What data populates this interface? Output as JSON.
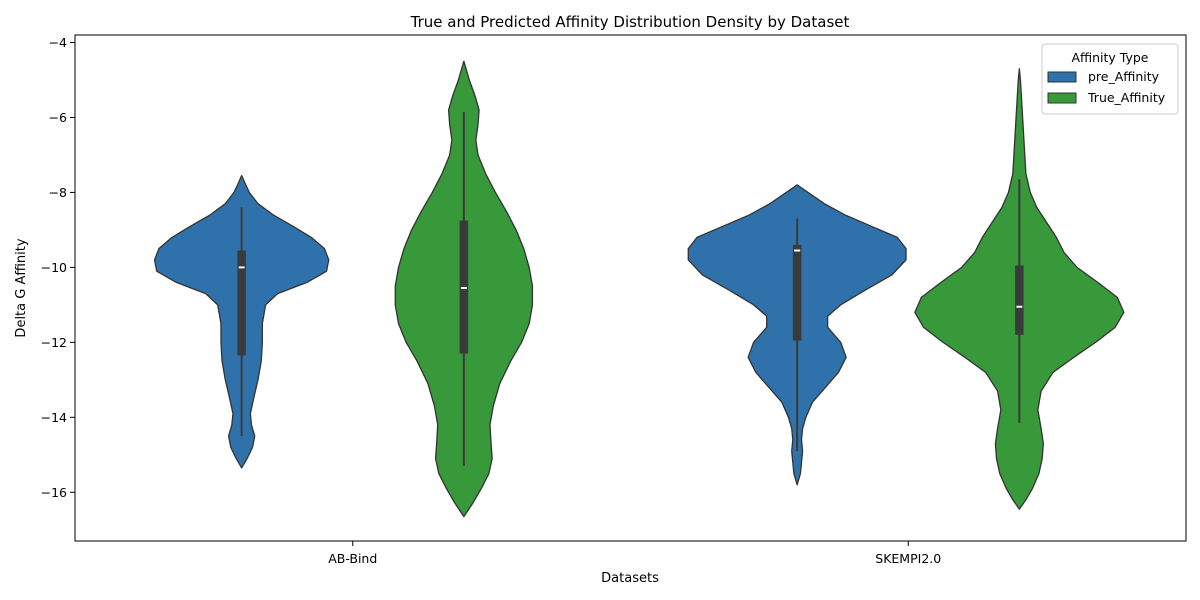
{
  "chart_data": {
    "type": "violin",
    "title": "True and Predicted Affinity Distribution Density by Dataset",
    "xlabel": "Datasets",
    "ylabel": "Delta G Affinity",
    "categories": [
      "AB-Bind",
      "SKEMPI2.0"
    ],
    "ylim": [
      -17.3,
      -3.8
    ],
    "yticks": [
      -4,
      -6,
      -8,
      -10,
      -12,
      -14,
      -16
    ],
    "ytick_labels": [
      "−4",
      "−6",
      "−8",
      "−10",
      "−12",
      "−14",
      "−16"
    ],
    "grid": false,
    "legend": {
      "title": "Affinity Type",
      "position": "top-right"
    },
    "series": [
      {
        "name": "pre_Affinity",
        "color": "#2f72ab",
        "violins": [
          {
            "category": "AB-Bind",
            "range": [
              -15.35,
              -7.55
            ],
            "profile": [
              [
                -15.35,
                0
              ],
              [
                -15.1,
                0.05
              ],
              [
                -14.8,
                0.1
              ],
              [
                -14.5,
                0.12
              ],
              [
                -14.2,
                0.09
              ],
              [
                -13.9,
                0.08
              ],
              [
                -13.5,
                0.11
              ],
              [
                -13.0,
                0.15
              ],
              [
                -12.5,
                0.18
              ],
              [
                -12.0,
                0.19
              ],
              [
                -11.5,
                0.19
              ],
              [
                -11.0,
                0.22
              ],
              [
                -10.7,
                0.33
              ],
              [
                -10.4,
                0.6
              ],
              [
                -10.1,
                0.78
              ],
              [
                -9.8,
                0.8
              ],
              [
                -9.5,
                0.76
              ],
              [
                -9.2,
                0.64
              ],
              [
                -8.9,
                0.47
              ],
              [
                -8.6,
                0.29
              ],
              [
                -8.3,
                0.15
              ],
              [
                -8.0,
                0.07
              ],
              [
                -7.75,
                0.03
              ],
              [
                -7.55,
                0
              ]
            ],
            "whisker": [
              -14.5,
              -8.4
            ],
            "q1": -12.35,
            "median": -10.0,
            "q3": -9.55
          },
          {
            "category": "SKEMPI2.0",
            "range": [
              -15.8,
              -7.8
            ],
            "profile": [
              [
                -15.8,
                0
              ],
              [
                -15.5,
                0.03
              ],
              [
                -15.2,
                0.04
              ],
              [
                -14.9,
                0.05
              ],
              [
                -14.6,
                0.04
              ],
              [
                -14.3,
                0.05
              ],
              [
                -14.0,
                0.08
              ],
              [
                -13.6,
                0.14
              ],
              [
                -13.2,
                0.26
              ],
              [
                -12.8,
                0.38
              ],
              [
                -12.4,
                0.45
              ],
              [
                -12.0,
                0.4
              ],
              [
                -11.6,
                0.28
              ],
              [
                -11.3,
                0.28
              ],
              [
                -11.0,
                0.4
              ],
              [
                -10.6,
                0.63
              ],
              [
                -10.2,
                0.87
              ],
              [
                -9.8,
                1.0
              ],
              [
                -9.5,
                1.0
              ],
              [
                -9.2,
                0.92
              ],
              [
                -8.9,
                0.68
              ],
              [
                -8.6,
                0.44
              ],
              [
                -8.3,
                0.25
              ],
              [
                -8.0,
                0.1
              ],
              [
                -7.8,
                0
              ]
            ],
            "whisker": [
              -14.9,
              -8.7
            ],
            "q1": -11.95,
            "median": -9.55,
            "q3": -9.4
          }
        ]
      },
      {
        "name": "True_Affinity",
        "color": "#37993a",
        "violins": [
          {
            "category": "AB-Bind",
            "range": [
              -16.65,
              -4.5
            ],
            "profile": [
              [
                -16.65,
                0
              ],
              [
                -16.3,
                0.08
              ],
              [
                -15.9,
                0.16
              ],
              [
                -15.5,
                0.23
              ],
              [
                -15.1,
                0.26
              ],
              [
                -14.7,
                0.25
              ],
              [
                -14.2,
                0.24
              ],
              [
                -13.7,
                0.27
              ],
              [
                -13.1,
                0.33
              ],
              [
                -12.5,
                0.43
              ],
              [
                -12.0,
                0.53
              ],
              [
                -11.5,
                0.6
              ],
              [
                -11.0,
                0.63
              ],
              [
                -10.5,
                0.63
              ],
              [
                -10.0,
                0.6
              ],
              [
                -9.5,
                0.55
              ],
              [
                -9.0,
                0.48
              ],
              [
                -8.5,
                0.39
              ],
              [
                -8.0,
                0.29
              ],
              [
                -7.5,
                0.2
              ],
              [
                -7.0,
                0.13
              ],
              [
                -6.6,
                0.11
              ],
              [
                -6.2,
                0.13
              ],
              [
                -5.8,
                0.14
              ],
              [
                -5.4,
                0.1
              ],
              [
                -5.0,
                0.05
              ],
              [
                -4.7,
                0.02
              ],
              [
                -4.5,
                0
              ]
            ],
            "whisker": [
              -15.3,
              -5.85
            ],
            "q1": -12.3,
            "median": -10.55,
            "q3": -8.75
          },
          {
            "category": "SKEMPI2.0",
            "range": [
              -16.45,
              -4.7
            ],
            "profile": [
              [
                -16.45,
                0
              ],
              [
                -16.2,
                0.06
              ],
              [
                -15.9,
                0.12
              ],
              [
                -15.5,
                0.18
              ],
              [
                -15.1,
                0.21
              ],
              [
                -14.7,
                0.22
              ],
              [
                -14.3,
                0.2
              ],
              [
                -13.8,
                0.17
              ],
              [
                -13.3,
                0.2
              ],
              [
                -12.8,
                0.31
              ],
              [
                -12.4,
                0.5
              ],
              [
                -12.0,
                0.7
              ],
              [
                -11.6,
                0.88
              ],
              [
                -11.2,
                0.96
              ],
              [
                -10.8,
                0.9
              ],
              [
                -10.4,
                0.72
              ],
              [
                -10.0,
                0.53
              ],
              [
                -9.6,
                0.41
              ],
              [
                -9.2,
                0.34
              ],
              [
                -8.8,
                0.25
              ],
              [
                -8.4,
                0.16
              ],
              [
                -8.0,
                0.1
              ],
              [
                -7.5,
                0.06
              ],
              [
                -7.0,
                0.05
              ],
              [
                -6.5,
                0.04
              ],
              [
                -6.0,
                0.03
              ],
              [
                -5.5,
                0.02
              ],
              [
                -5.0,
                0.01
              ],
              [
                -4.7,
                0
              ]
            ],
            "whisker": [
              -14.15,
              -7.65
            ],
            "q1": -11.8,
            "median": -11.05,
            "q3": -9.95
          }
        ]
      }
    ]
  }
}
